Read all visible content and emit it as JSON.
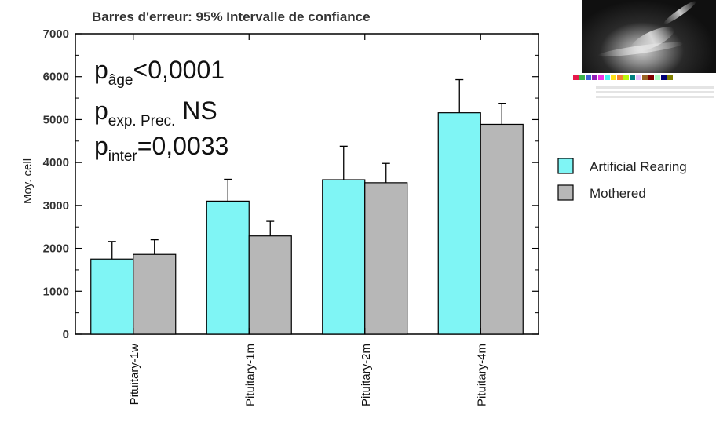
{
  "chart_data": {
    "type": "bar",
    "title": "Barres d'erreur: 95% Intervalle de confiance",
    "ylabel": "Moy. cell",
    "xlabel": "",
    "ylim": [
      0,
      7000
    ],
    "yticks": [
      0,
      1000,
      2000,
      3000,
      4000,
      5000,
      6000,
      7000
    ],
    "categories": [
      "Pituitary-1w",
      "Pituitary-1m",
      "Pituitary-2m",
      "Pituitary-4m"
    ],
    "series": [
      {
        "name": "Artificial Rearing",
        "color": "#7ff5f5",
        "values": [
          1750,
          3100,
          3600,
          5160
        ],
        "error_upper": [
          2160,
          3610,
          4380,
          5930
        ]
      },
      {
        "name": "Mothered",
        "color": "#b7b7b7",
        "values": [
          1860,
          2290,
          3530,
          4890
        ],
        "error_upper": [
          2200,
          2630,
          3980,
          5380
        ]
      }
    ],
    "legend_position": "right",
    "grid": false,
    "annotations": [
      {
        "main": "p",
        "sub": "âge",
        "rest": "<0,0001"
      },
      {
        "main": "p",
        "sub": "exp. Prec.",
        "rest": " NS"
      },
      {
        "main": "p",
        "sub": "inter",
        "rest": "=0,0033"
      }
    ]
  },
  "inset": {
    "icon": "scan-image-thumbnail",
    "swatch_colors": [
      "#e6194b",
      "#3cb44b",
      "#4363d8",
      "#911eb4",
      "#f032e6",
      "#46f0f0",
      "#ffe119",
      "#f58231",
      "#bcf60c",
      "#008080",
      "#e6beff",
      "#9a6324",
      "#800000",
      "#aaffc3",
      "#000075",
      "#808000"
    ]
  }
}
